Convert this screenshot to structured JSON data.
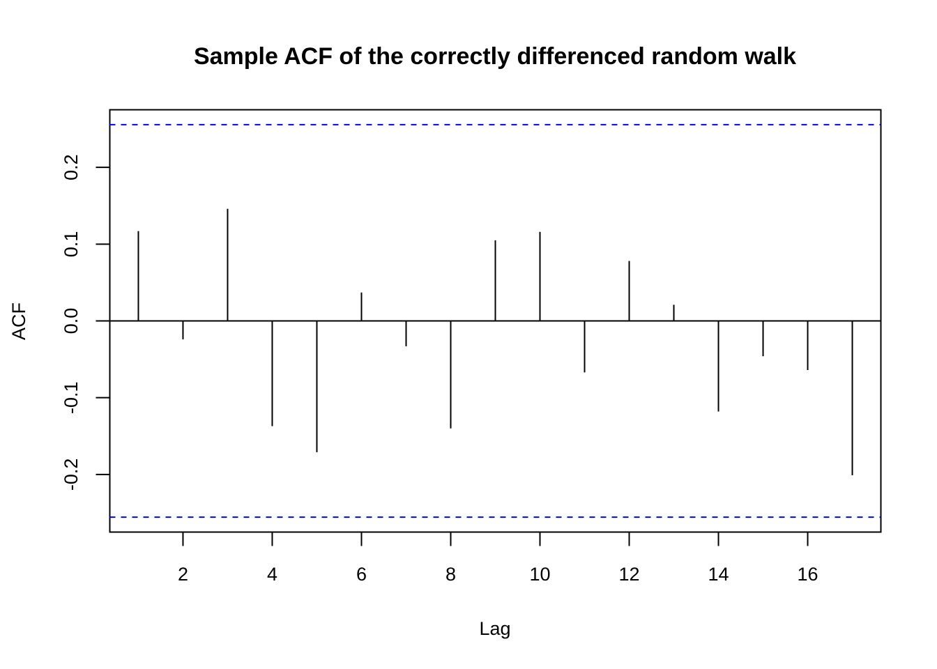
{
  "chart_data": {
    "type": "bar",
    "title": "Sample ACF of the correctly differenced random walk",
    "xlabel": "Lag",
    "ylabel": "ACF",
    "x": [
      1,
      2,
      3,
      4,
      5,
      6,
      7,
      8,
      9,
      10,
      11,
      12,
      13,
      14,
      15,
      16,
      17
    ],
    "values": [
      0.117,
      -0.024,
      0.146,
      -0.137,
      -0.171,
      0.037,
      -0.033,
      -0.14,
      0.105,
      0.116,
      -0.067,
      0.078,
      0.021,
      -0.118,
      -0.046,
      -0.064,
      -0.201
    ],
    "xlim": [
      0.36,
      17.64
    ],
    "ylim": [
      -0.275,
      0.275
    ],
    "x_ticks": [
      2,
      4,
      6,
      8,
      10,
      12,
      14,
      16
    ],
    "x_tick_labels": [
      "2",
      "4",
      "6",
      "8",
      "10",
      "12",
      "14",
      "16"
    ],
    "y_ticks": [
      -0.2,
      -0.1,
      0.0,
      0.1,
      0.2
    ],
    "y_tick_labels": [
      "-0.2",
      "-0.1",
      "0.0",
      "0.1",
      "0.2"
    ],
    "confidence_bound": 0.2556,
    "zero_line": 0,
    "grid": false,
    "colors": {
      "bars": "#000000",
      "confidence_lines": "#0000ff"
    }
  }
}
